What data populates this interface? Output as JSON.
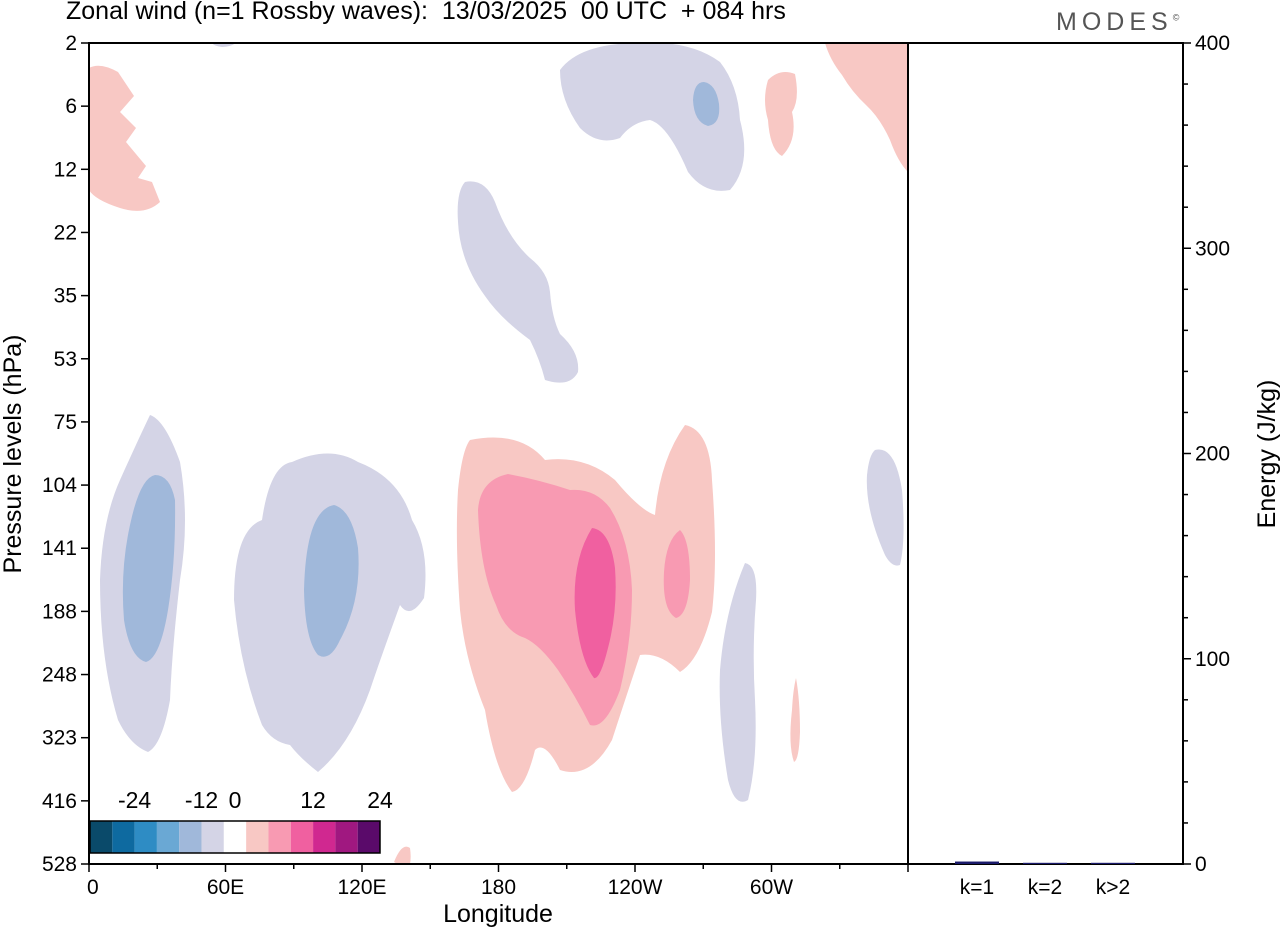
{
  "title": "Zonal wind (n=1 Rossby waves):  13/03/2025  00 UTC  + 084 hrs",
  "brand": "MODES",
  "brand_mark": "©",
  "chart_data": [
    {
      "type": "heatmap",
      "xlabel": "Longitude",
      "ylabel": "Pressure levels (hPa)",
      "x_tick_labels": [
        "0",
        "60E",
        "120E",
        "180",
        "120W",
        "60W"
      ],
      "y_tick_labels": [
        "2",
        "6",
        "12",
        "22",
        "35",
        "53",
        "75",
        "104",
        "141",
        "188",
        "248",
        "323",
        "416",
        "528"
      ],
      "colorbar": {
        "labels": [
          "-24",
          "-12",
          "0",
          "12",
          "24"
        ],
        "levels": [
          -28,
          -24,
          -20,
          -16,
          -12,
          -8,
          -4,
          4,
          8,
          12,
          16,
          20,
          24,
          28
        ],
        "colors": [
          "#0a4a6a",
          "#0e6aa0",
          "#2e8cc4",
          "#6aa8d4",
          "#a0b8da",
          "#d4d4e6",
          "#ffffff",
          "#f8c8c4",
          "#f89ab2",
          "#f060a0",
          "#d02890",
          "#a01880",
          "#5a0a6a"
        ]
      },
      "regions": [
        {
          "sign": "negative",
          "level": "-4 to -8",
          "lon_range": [
            "20E",
            "50E"
          ],
          "p_range": [
            75,
            323
          ]
        },
        {
          "sign": "negative",
          "level": "-8 to -12",
          "lon_range": [
            "25E",
            "40E"
          ],
          "p_range": [
            104,
            248
          ]
        },
        {
          "sign": "negative",
          "level": "-4 to -8",
          "lon_range": [
            "65E",
            "150E"
          ],
          "p_range": [
            104,
            416
          ]
        },
        {
          "sign": "negative",
          "level": "-8 to -12",
          "lon_range": [
            "95E",
            "120E"
          ],
          "p_range": [
            104,
            248
          ]
        },
        {
          "sign": "positive",
          "level": "4 to 8",
          "lon_range": [
            "165E",
            "85W"
          ],
          "p_range": [
            75,
            416
          ]
        },
        {
          "sign": "positive",
          "level": "8 to 12",
          "lon_range": [
            "170E",
            "140W"
          ],
          "p_range": [
            104,
            248
          ]
        },
        {
          "sign": "positive",
          "level": "12 to 16",
          "lon_range": [
            "155W",
            "130W"
          ],
          "p_range": [
            141,
            248
          ]
        }
      ]
    },
    {
      "type": "bar",
      "ylabel": "Energy (J/kg)",
      "categories": [
        "k=1",
        "k=2",
        "k>2"
      ],
      "values": [
        1.2,
        0.5,
        0.5
      ],
      "ylim": [
        0,
        400
      ],
      "y_tick_labels": [
        "0",
        "100",
        "200",
        "300",
        "400"
      ],
      "bar_color": "#1a1a6a"
    }
  ]
}
